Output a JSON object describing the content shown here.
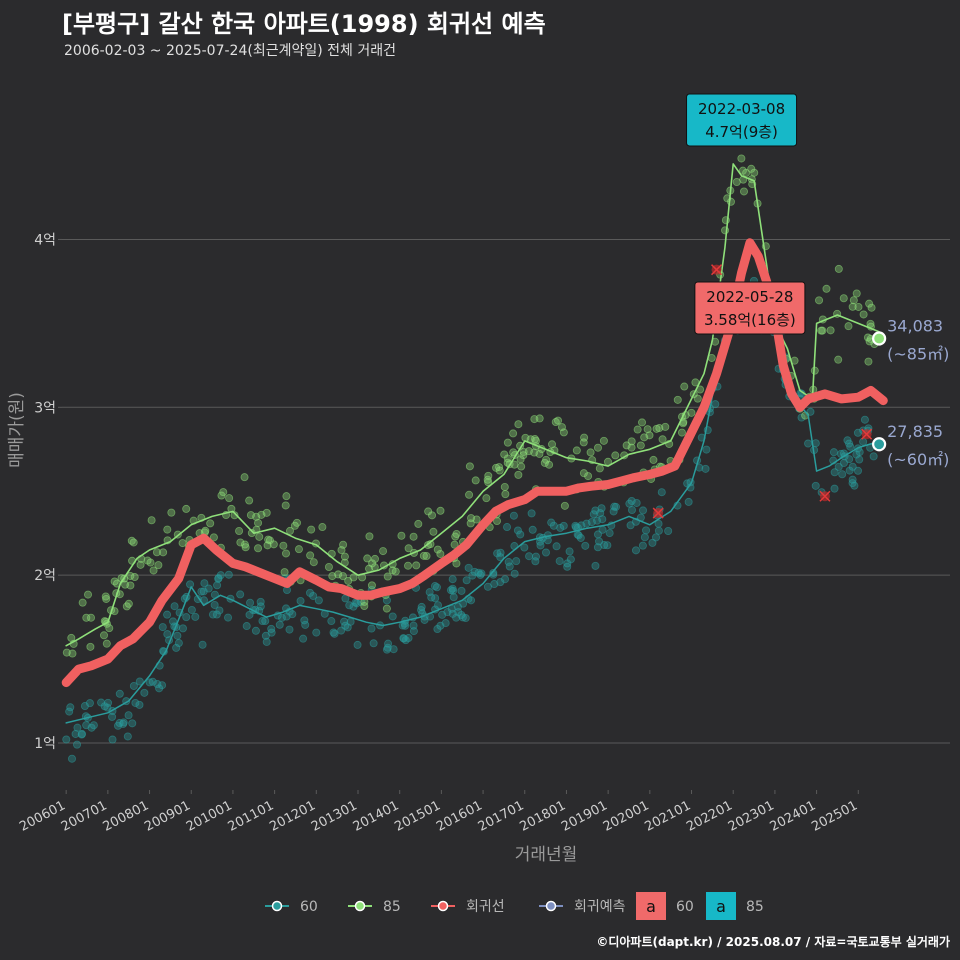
{
  "header": {
    "title": "[부평구] 갈산 한국 아파트(1998) 회귀선 예측",
    "subtitle": "2006-02-03 ~ 2025-07-24(최근계약일) 전체 거래건"
  },
  "footer": {
    "credit": "©디아파트(dapt.kr) / 2025.08.07 / 자료=국토교통부 실거래가"
  },
  "colors": {
    "background": "#2b2b2d",
    "grid": "#5a5a5a",
    "s60": "#2a9d9d",
    "s85": "#8fe07a",
    "regression": "#f06060",
    "forecast": "#7d8fc0",
    "callout_teal": "#17b8c8",
    "callout_red": "#f06a6a",
    "end_label": "#9aa8d0"
  },
  "chart_data": {
    "type": "line",
    "xlabel": "거래년월",
    "ylabel": "매매가(원)",
    "x_ticks": [
      "200601",
      "200701",
      "200801",
      "200901",
      "201001",
      "201101",
      "201201",
      "201301",
      "201401",
      "201501",
      "201601",
      "201701",
      "201801",
      "201901",
      "202001",
      "202101",
      "202201",
      "202301",
      "202401",
      "202501"
    ],
    "y_ticks": [
      {
        "value": 1,
        "label": "1억"
      },
      {
        "value": 2,
        "label": "2억"
      },
      {
        "value": 3,
        "label": "3억"
      },
      {
        "value": 4,
        "label": "4억"
      }
    ],
    "xlim": [
      2005.9,
      2027.2
    ],
    "ylim": [
      0.72,
      4.95
    ],
    "grid": true,
    "series": [
      {
        "name": "60",
        "key": "s60",
        "points": [
          [
            2006.0,
            1.12
          ],
          [
            2006.5,
            1.15
          ],
          [
            2007.0,
            1.18
          ],
          [
            2007.5,
            1.25
          ],
          [
            2008.0,
            1.4
          ],
          [
            2008.4,
            1.55
          ],
          [
            2008.8,
            1.8
          ],
          [
            2009.0,
            1.93
          ],
          [
            2009.3,
            1.82
          ],
          [
            2009.7,
            1.88
          ],
          [
            2010.0,
            1.85
          ],
          [
            2010.4,
            1.8
          ],
          [
            2010.8,
            1.75
          ],
          [
            2011.2,
            1.78
          ],
          [
            2011.6,
            1.82
          ],
          [
            2012.0,
            1.8
          ],
          [
            2012.4,
            1.78
          ],
          [
            2012.8,
            1.75
          ],
          [
            2013.2,
            1.72
          ],
          [
            2013.6,
            1.7
          ],
          [
            2014.0,
            1.72
          ],
          [
            2014.5,
            1.75
          ],
          [
            2015.0,
            1.8
          ],
          [
            2015.5,
            1.85
          ],
          [
            2016.0,
            1.95
          ],
          [
            2016.5,
            2.1
          ],
          [
            2017.0,
            2.2
          ],
          [
            2017.5,
            2.23
          ],
          [
            2018.0,
            2.25
          ],
          [
            2018.5,
            2.28
          ],
          [
            2019.0,
            2.3
          ],
          [
            2019.5,
            2.35
          ],
          [
            2020.0,
            2.3
          ],
          [
            2020.5,
            2.38
          ],
          [
            2021.0,
            2.55
          ],
          [
            2021.3,
            2.8
          ],
          [
            2021.6,
            3.2
          ],
          [
            2021.8,
            3.45
          ],
          [
            2022.0,
            3.55
          ],
          [
            2022.5,
            3.58
          ],
          [
            2022.8,
            3.55
          ],
          [
            2023.0,
            3.5
          ],
          [
            2023.5,
            3.05
          ],
          [
            2023.8,
            2.95
          ],
          [
            2024.0,
            2.62
          ],
          [
            2024.3,
            2.65
          ],
          [
            2024.6,
            2.7
          ],
          [
            2025.0,
            2.76
          ],
          [
            2025.4,
            2.79
          ]
        ]
      },
      {
        "name": "85",
        "key": "s85",
        "points": [
          [
            2006.0,
            1.58
          ],
          [
            2006.3,
            1.62
          ],
          [
            2006.7,
            1.68
          ],
          [
            2007.0,
            1.72
          ],
          [
            2007.3,
            1.95
          ],
          [
            2007.7,
            2.1
          ],
          [
            2008.0,
            2.15
          ],
          [
            2008.5,
            2.2
          ],
          [
            2009.0,
            2.3
          ],
          [
            2009.5,
            2.35
          ],
          [
            2010.0,
            2.38
          ],
          [
            2010.5,
            2.25
          ],
          [
            2011.0,
            2.28
          ],
          [
            2011.5,
            2.22
          ],
          [
            2012.0,
            2.18
          ],
          [
            2012.5,
            2.08
          ],
          [
            2013.0,
            2.0
          ],
          [
            2013.5,
            2.03
          ],
          [
            2014.0,
            2.1
          ],
          [
            2014.5,
            2.15
          ],
          [
            2015.0,
            2.25
          ],
          [
            2015.5,
            2.35
          ],
          [
            2016.0,
            2.5
          ],
          [
            2016.5,
            2.6
          ],
          [
            2017.0,
            2.8
          ],
          [
            2017.5,
            2.75
          ],
          [
            2018.0,
            2.7
          ],
          [
            2018.5,
            2.68
          ],
          [
            2019.0,
            2.65
          ],
          [
            2019.5,
            2.72
          ],
          [
            2020.0,
            2.75
          ],
          [
            2020.5,
            2.8
          ],
          [
            2021.0,
            3.05
          ],
          [
            2021.3,
            3.2
          ],
          [
            2021.5,
            3.4
          ],
          [
            2021.8,
            3.95
          ],
          [
            2022.0,
            4.45
          ],
          [
            2022.2,
            4.38
          ],
          [
            2022.5,
            4.35
          ],
          [
            2022.8,
            3.85
          ],
          [
            2023.0,
            3.5
          ],
          [
            2023.3,
            3.35
          ],
          [
            2023.6,
            3.1
          ],
          [
            2023.9,
            3.05
          ],
          [
            2024.0,
            3.5
          ],
          [
            2024.5,
            3.55
          ],
          [
            2025.0,
            3.5
          ],
          [
            2025.5,
            3.45
          ]
        ]
      },
      {
        "name": "회귀선",
        "key": "regression",
        "points": [
          [
            2006.0,
            1.36
          ],
          [
            2006.3,
            1.44
          ],
          [
            2006.6,
            1.46
          ],
          [
            2007.0,
            1.5
          ],
          [
            2007.3,
            1.58
          ],
          [
            2007.6,
            1.62
          ],
          [
            2008.0,
            1.72
          ],
          [
            2008.3,
            1.85
          ],
          [
            2008.7,
            1.98
          ],
          [
            2009.0,
            2.18
          ],
          [
            2009.3,
            2.22
          ],
          [
            2009.6,
            2.15
          ],
          [
            2010.0,
            2.07
          ],
          [
            2010.3,
            2.05
          ],
          [
            2010.6,
            2.02
          ],
          [
            2011.0,
            1.98
          ],
          [
            2011.3,
            1.95
          ],
          [
            2011.6,
            2.02
          ],
          [
            2012.0,
            1.97
          ],
          [
            2012.3,
            1.93
          ],
          [
            2012.6,
            1.92
          ],
          [
            2013.0,
            1.88
          ],
          [
            2013.3,
            1.88
          ],
          [
            2013.6,
            1.9
          ],
          [
            2014.0,
            1.92
          ],
          [
            2014.3,
            1.95
          ],
          [
            2014.6,
            2.0
          ],
          [
            2015.0,
            2.07
          ],
          [
            2015.3,
            2.12
          ],
          [
            2015.6,
            2.18
          ],
          [
            2016.0,
            2.3
          ],
          [
            2016.3,
            2.38
          ],
          [
            2016.6,
            2.42
          ],
          [
            2017.0,
            2.45
          ],
          [
            2017.3,
            2.5
          ],
          [
            2017.6,
            2.5
          ],
          [
            2018.0,
            2.5
          ],
          [
            2018.3,
            2.52
          ],
          [
            2018.6,
            2.53
          ],
          [
            2019.0,
            2.54
          ],
          [
            2019.3,
            2.56
          ],
          [
            2019.6,
            2.58
          ],
          [
            2020.0,
            2.6
          ],
          [
            2020.3,
            2.62
          ],
          [
            2020.6,
            2.65
          ],
          [
            2021.0,
            2.85
          ],
          [
            2021.3,
            3.0
          ],
          [
            2021.6,
            3.2
          ],
          [
            2021.9,
            3.45
          ],
          [
            2022.2,
            3.8
          ],
          [
            2022.4,
            3.98
          ],
          [
            2022.6,
            3.9
          ],
          [
            2022.8,
            3.75
          ],
          [
            2023.0,
            3.55
          ],
          [
            2023.2,
            3.25
          ],
          [
            2023.4,
            3.08
          ],
          [
            2023.6,
            3.0
          ],
          [
            2023.8,
            3.05
          ],
          [
            2024.2,
            3.08
          ],
          [
            2024.6,
            3.05
          ],
          [
            2025.0,
            3.06
          ],
          [
            2025.3,
            3.1
          ],
          [
            2025.6,
            3.04
          ]
        ]
      },
      {
        "name": "회귀예측",
        "key": "forecast",
        "points": []
      }
    ],
    "scatter": [
      {
        "series": "60",
        "count": 380,
        "seed": 7,
        "spread": 0.09
      },
      {
        "series": "85",
        "count": 330,
        "seed": 19,
        "spread": 0.11
      }
    ],
    "outliers": [
      {
        "x": 2021.6,
        "y": 3.82
      },
      {
        "x": 2020.2,
        "y": 2.37
      },
      {
        "x": 2024.2,
        "y": 2.47
      },
      {
        "x": 2025.2,
        "y": 2.84
      }
    ],
    "callouts": [
      {
        "date": "2022-03-08",
        "value": "4.7억(9층)",
        "x": 2022.2,
        "y": 4.7,
        "style": "callout_teal"
      },
      {
        "date": "2022-05-28",
        "value": "3.58억(16층)",
        "x": 2022.4,
        "y": 3.58,
        "style": "callout_red"
      }
    ],
    "end_labels": [
      {
        "value": "34,083",
        "unit": "(~85㎡)",
        "x": 2025.5,
        "y": 3.41,
        "series": "s85"
      },
      {
        "value": "27,835",
        "unit": "(~60㎡)",
        "x": 2025.5,
        "y": 2.78,
        "series": "s60"
      }
    ],
    "legend": {
      "placement": "bottom",
      "items": [
        {
          "label": "60",
          "key": "s60"
        },
        {
          "label": "85",
          "key": "s85"
        },
        {
          "label": "회귀선",
          "key": "regression"
        },
        {
          "label": "회귀예측",
          "key": "forecast"
        }
      ],
      "box_items": [
        {
          "glyph": "a",
          "label": "60",
          "key": "callout_red"
        },
        {
          "glyph": "a",
          "label": "85",
          "key": "callout_teal"
        }
      ]
    }
  }
}
